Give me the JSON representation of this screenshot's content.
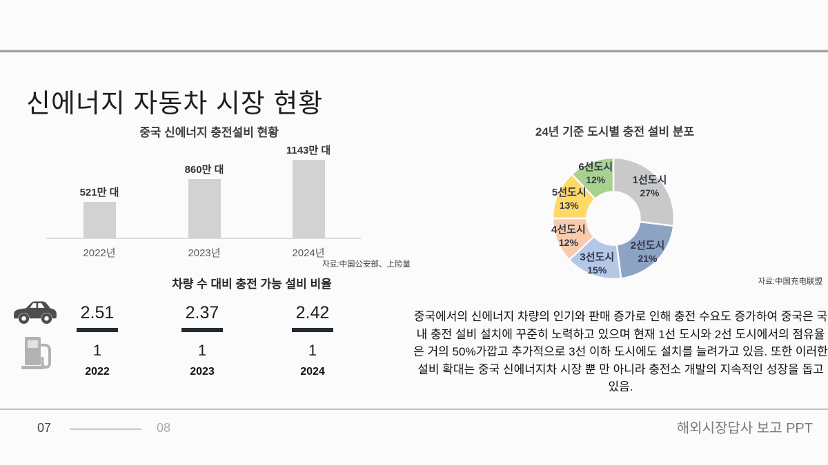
{
  "slide_title": "신에너지 자동차 시장 현황",
  "colors": {
    "background": "#fbfbfb",
    "bar_fill": "#d2d2d2",
    "fraction_bar": "#242b35",
    "car_icon": "#4d4d4d",
    "pump_icon": "#b3b3b3",
    "donut_label_text": "#33374a"
  },
  "bar_chart": {
    "title": "중국 신에너지 충전설비 현황",
    "source": "자료:中国公安部、上险量",
    "categories": [
      "2022년",
      "2023년",
      "2024년"
    ],
    "values": [
      521,
      860,
      1143
    ],
    "value_labels": [
      "521만 대",
      "860만 대",
      "1143만 대"
    ],
    "max_value": 1143
  },
  "donut_chart": {
    "title": "24년 기준 도시별 충전 설비 분포",
    "source": "자료:中国充电联盟",
    "segments": [
      {
        "label": "1선도시",
        "pct": 27,
        "pct_label": "27%",
        "color": "#c9c9c9"
      },
      {
        "label": "2선도시",
        "pct": 21,
        "pct_label": "21%",
        "color": "#8ca3c3"
      },
      {
        "label": "3선도시",
        "pct": 15,
        "pct_label": "15%",
        "color": "#b4c7e7"
      },
      {
        "label": "4선도시",
        "pct": 12,
        "pct_label": "12%",
        "color": "#f8cbad"
      },
      {
        "label": "5선도시",
        "pct": 13,
        "pct_label": "13%",
        "color": "#ffd966"
      },
      {
        "label": "6선도시",
        "pct": 12,
        "pct_label": "12%",
        "color": "#a9d18e"
      }
    ]
  },
  "ratio_section": {
    "title": "차량 수 대비 충전 가능 설비 비율",
    "items": [
      {
        "numerator": "2.51",
        "denominator": "1",
        "year": "2022"
      },
      {
        "numerator": "2.37",
        "denominator": "1",
        "year": "2023"
      },
      {
        "numerator": "2.42",
        "denominator": "1",
        "year": "2024"
      }
    ]
  },
  "description": "중국에서의 신에너지 차량의 인기와 판매 증가로 인해 충전 수요도 증가하여 중국은 국내 충전 설비 설치에 꾸준히 노력하고 있으며 현재 1선 도시와 2선 도시에서의 점유율은 거의 50%가깝고 추가적으로 3선 이하 도시에도 설치를 늘려가고 있음. 또한 이러한 설비 확대는 중국 신에너지차 시장 뿐 만 아니라 충전소 개발의 지속적인 성장을 돕고 있음.",
  "footer": {
    "page_current": "07",
    "page_next": "08",
    "caption": "해외시장답사 보고 PPT"
  },
  "chart_data": [
    {
      "type": "bar",
      "title": "중국 신에너지 충전설비 현황",
      "categories": [
        "2022년",
        "2023년",
        "2024년"
      ],
      "values": [
        521,
        860,
        1143
      ],
      "unit": "만 대",
      "source": "자료:中国公安部、上险量",
      "xlabel": "",
      "ylabel": "",
      "ylim": [
        0,
        1200
      ],
      "grid": false,
      "legend": "none"
    },
    {
      "type": "pie",
      "subtype": "donut",
      "title": "24년 기준 도시별 충전 설비 분포",
      "categories": [
        "1선도시",
        "2선도시",
        "3선도시",
        "4선도시",
        "5선도시",
        "6선도시"
      ],
      "values": [
        27,
        21,
        15,
        12,
        13,
        12
      ],
      "unit": "%",
      "source": "자료:中国充电联盟",
      "start_angle_deg": 0,
      "direction": "clockwise",
      "legend": "labels-on-slices"
    },
    {
      "type": "table",
      "title": "차량 수 대비 충전 가능 설비 비율",
      "categories": [
        "2022",
        "2023",
        "2024"
      ],
      "series": [
        {
          "name": "차량 수",
          "values": [
            2.51,
            2.37,
            2.42
          ]
        },
        {
          "name": "충전 가능 설비",
          "values": [
            1,
            1,
            1
          ]
        }
      ]
    }
  ]
}
